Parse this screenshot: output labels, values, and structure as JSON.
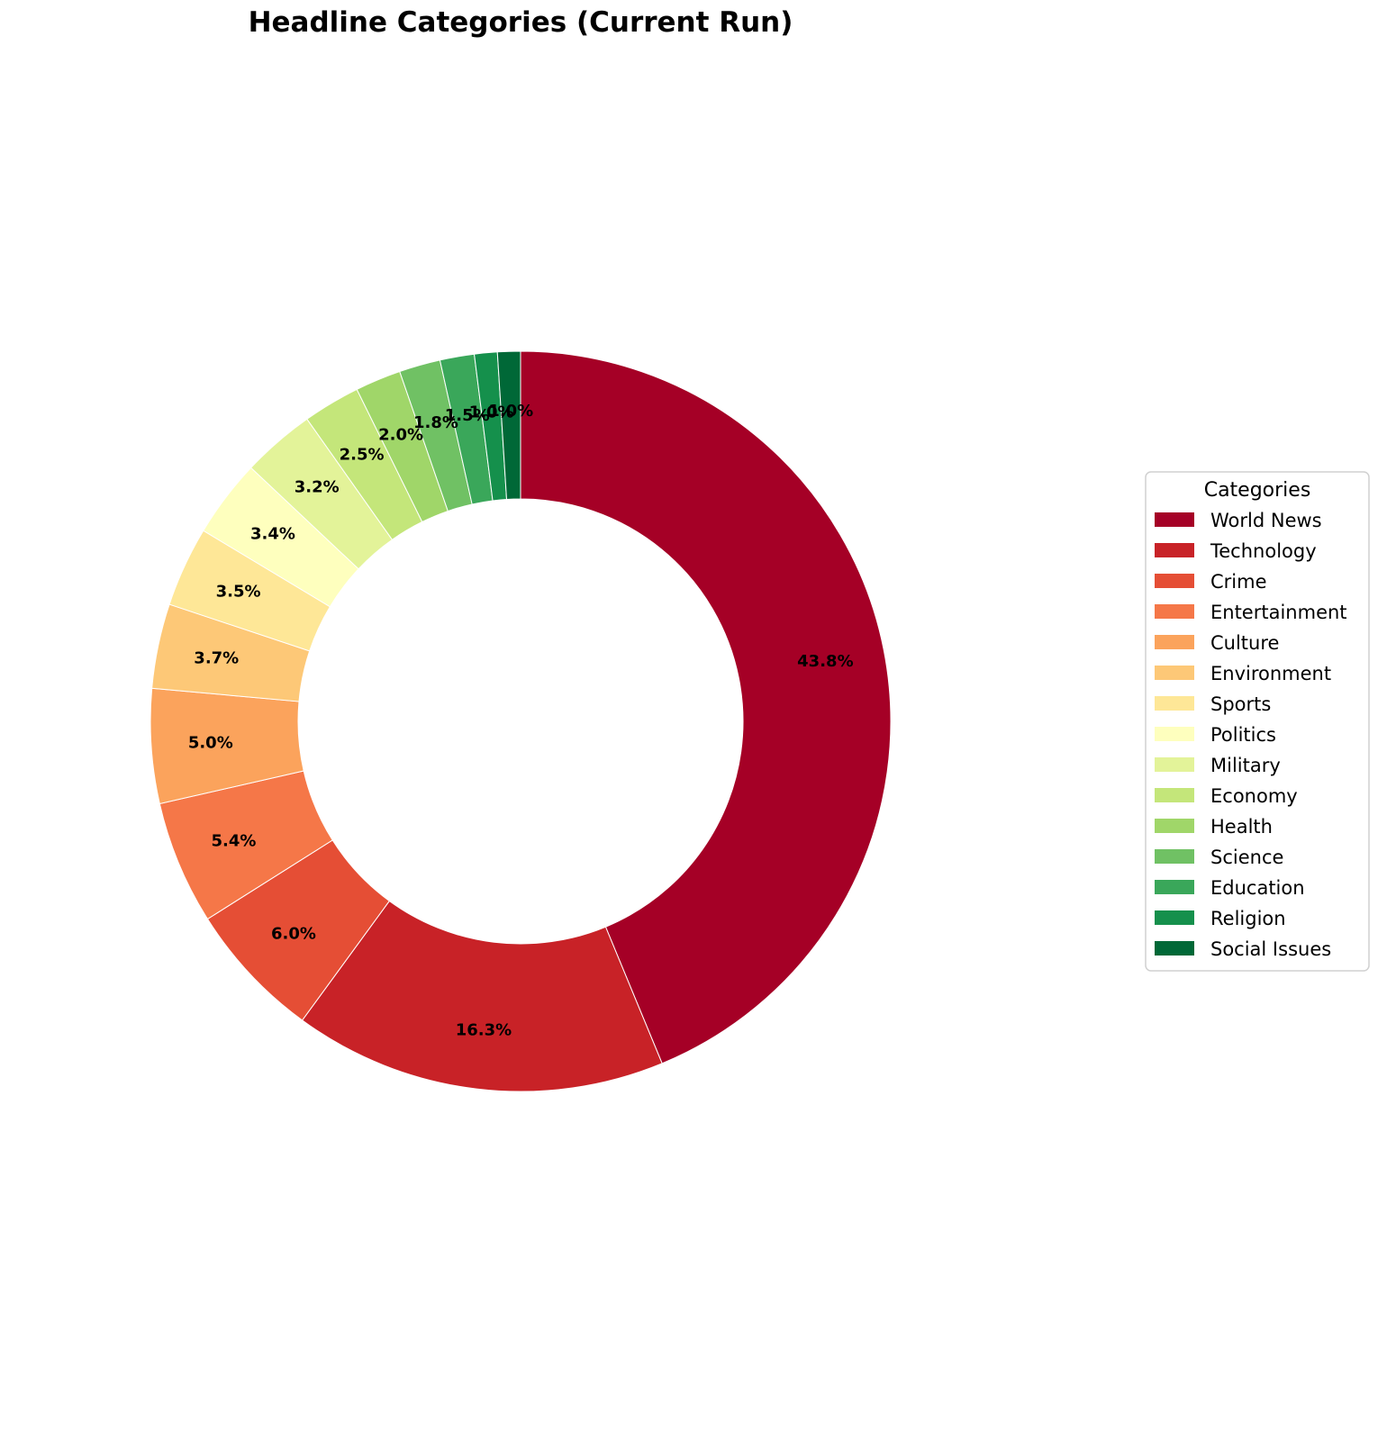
{
  "chart_data": {
    "type": "pie",
    "variant": "donut",
    "title": "Headline Categories (Current Run)",
    "start_angle_deg": 90,
    "direction": "clockwise",
    "legend": {
      "title": "Categories",
      "placement": "right"
    },
    "slices": [
      {
        "label": "World News",
        "value": 43.8,
        "pct_label": "43.8%",
        "color": "#a50026"
      },
      {
        "label": "Technology",
        "value": 16.3,
        "pct_label": "16.3%",
        "color": "#c82227"
      },
      {
        "label": "Crime",
        "value": 6.0,
        "pct_label": "6.0%",
        "color": "#e54e35"
      },
      {
        "label": "Entertainment",
        "value": 5.4,
        "pct_label": "5.4%",
        "color": "#f57748"
      },
      {
        "label": "Culture",
        "value": 5.0,
        "pct_label": "5.0%",
        "color": "#fba35c"
      },
      {
        "label": "Environment",
        "value": 3.7,
        "pct_label": "3.7%",
        "color": "#fdc877"
      },
      {
        "label": "Sports",
        "value": 3.5,
        "pct_label": "3.5%",
        "color": "#fee797"
      },
      {
        "label": "Politics",
        "value": 3.4,
        "pct_label": "3.4%",
        "color": "#feffbe"
      },
      {
        "label": "Military",
        "value": 3.2,
        "pct_label": "3.2%",
        "color": "#e3f399"
      },
      {
        "label": "Economy",
        "value": 2.5,
        "pct_label": "2.5%",
        "color": "#c4e67a"
      },
      {
        "label": "Health",
        "value": 2.0,
        "pct_label": "2.0%",
        "color": "#a0d669"
      },
      {
        "label": "Science",
        "value": 1.8,
        "pct_label": "1.8%",
        "color": "#70c164"
      },
      {
        "label": "Education",
        "value": 1.5,
        "pct_label": "1.5%",
        "color": "#3aa75a"
      },
      {
        "label": "Religion",
        "value": 1.0,
        "pct_label": "1.0%",
        "color": "#15904c"
      },
      {
        "label": "Social Issues",
        "value": 1.0,
        "pct_label": "1.0%",
        "color": "#006837"
      }
    ]
  }
}
